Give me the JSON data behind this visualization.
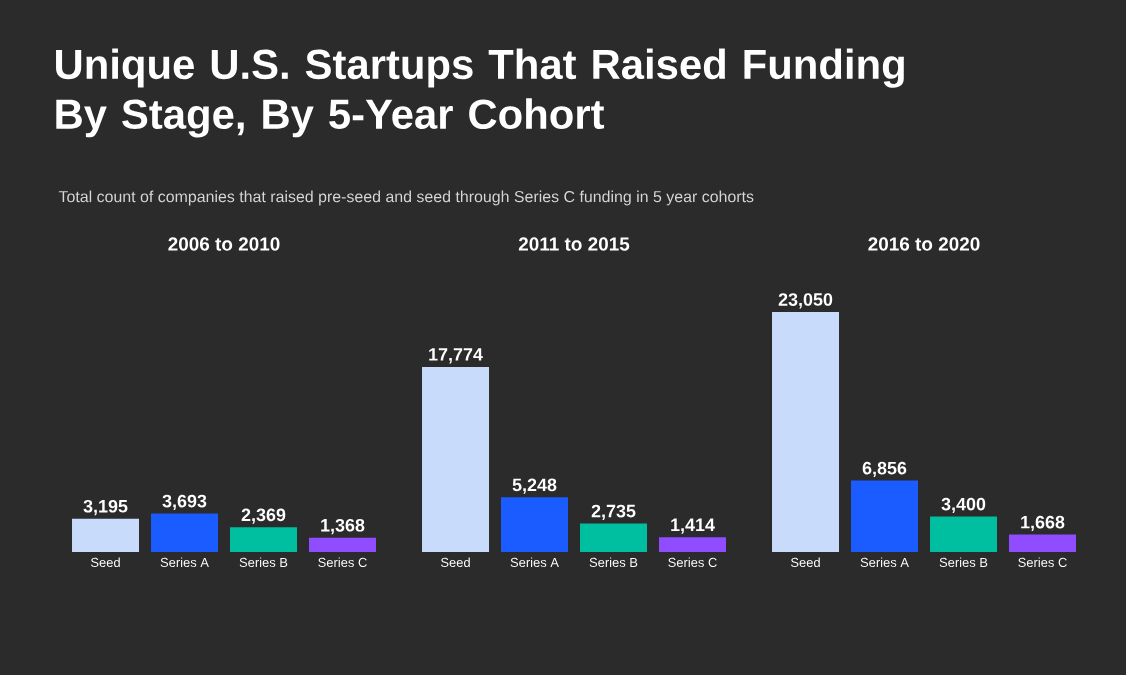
{
  "chart_data": [
    {
      "type": "bar",
      "title": "2006 to 2010",
      "annotations": [
        "Unique U.S. Startups That Raised Funding By Stage, By 5-Year Cohort",
        "Total count of companies that raised pre-seed and seed through Series C funding in 5 year cohorts"
      ],
      "categories": [
        "Seed",
        "Series A",
        "Series B",
        "Series C"
      ],
      "values": [
        3195,
        3693,
        2369,
        1368
      ],
      "value_labels": [
        "3,195",
        "3,693",
        "2,369",
        "1,368"
      ],
      "colors": [
        "#c9dbfb",
        "#1a5cff",
        "#00bfa0",
        "#8f4dff"
      ]
    },
    {
      "type": "bar",
      "title": "2011 to 2015",
      "categories": [
        "Seed",
        "Series A",
        "Series B",
        "Series C"
      ],
      "values": [
        17774,
        5248,
        2735,
        1414
      ],
      "value_labels": [
        "17,774",
        "5,248",
        "2,735",
        "1,414"
      ],
      "colors": [
        "#c9dbfb",
        "#1a5cff",
        "#00bfa0",
        "#8f4dff"
      ]
    },
    {
      "type": "bar",
      "title": "2016 to 2020",
      "categories": [
        "Seed",
        "Series A",
        "Series B",
        "Series C"
      ],
      "values": [
        23050,
        6856,
        3400,
        1668
      ],
      "value_labels": [
        "23,050",
        "6,856",
        "3,400",
        "1,668"
      ],
      "colors": [
        "#c9dbfb",
        "#1a5cff",
        "#00bfa0",
        "#8f4dff"
      ]
    }
  ]
}
